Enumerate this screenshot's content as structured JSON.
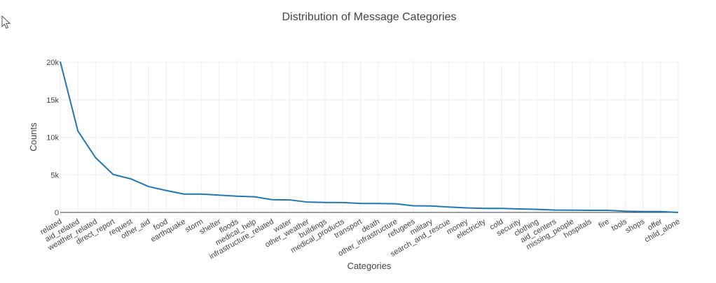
{
  "chart_data": {
    "type": "line",
    "title": "Distribution of Message Categories",
    "xlabel": "Categories",
    "ylabel": "Counts",
    "ylim": [
      0,
      20300
    ],
    "yticks": [
      0,
      5000,
      10000,
      15000,
      20000
    ],
    "ytick_labels": [
      "0",
      "5k",
      "10k",
      "15k",
      "20k"
    ],
    "grid": true,
    "categories": [
      "related",
      "aid_related",
      "weather_related",
      "direct_report",
      "request",
      "other_aid",
      "food",
      "earthquake",
      "storm",
      "shelter",
      "floods",
      "medical_help",
      "infrastructure_related",
      "water",
      "other_weather",
      "buildings",
      "medical_products",
      "transport",
      "death",
      "other_infrastructure",
      "refugees",
      "military",
      "search_and_rescue",
      "money",
      "electricity",
      "cold",
      "security",
      "clothing",
      "aid_centers",
      "missing_people",
      "hospitals",
      "fire",
      "tools",
      "shops",
      "offer",
      "child_alone"
    ],
    "values": [
      20100,
      10850,
      7300,
      5050,
      4470,
      3450,
      2920,
      2450,
      2440,
      2310,
      2160,
      2080,
      1700,
      1670,
      1380,
      1330,
      1310,
      1200,
      1190,
      1150,
      880,
      860,
      720,
      610,
      530,
      530,
      470,
      410,
      310,
      300,
      280,
      280,
      160,
      120,
      120,
      0
    ],
    "color": "#1f77b4"
  }
}
